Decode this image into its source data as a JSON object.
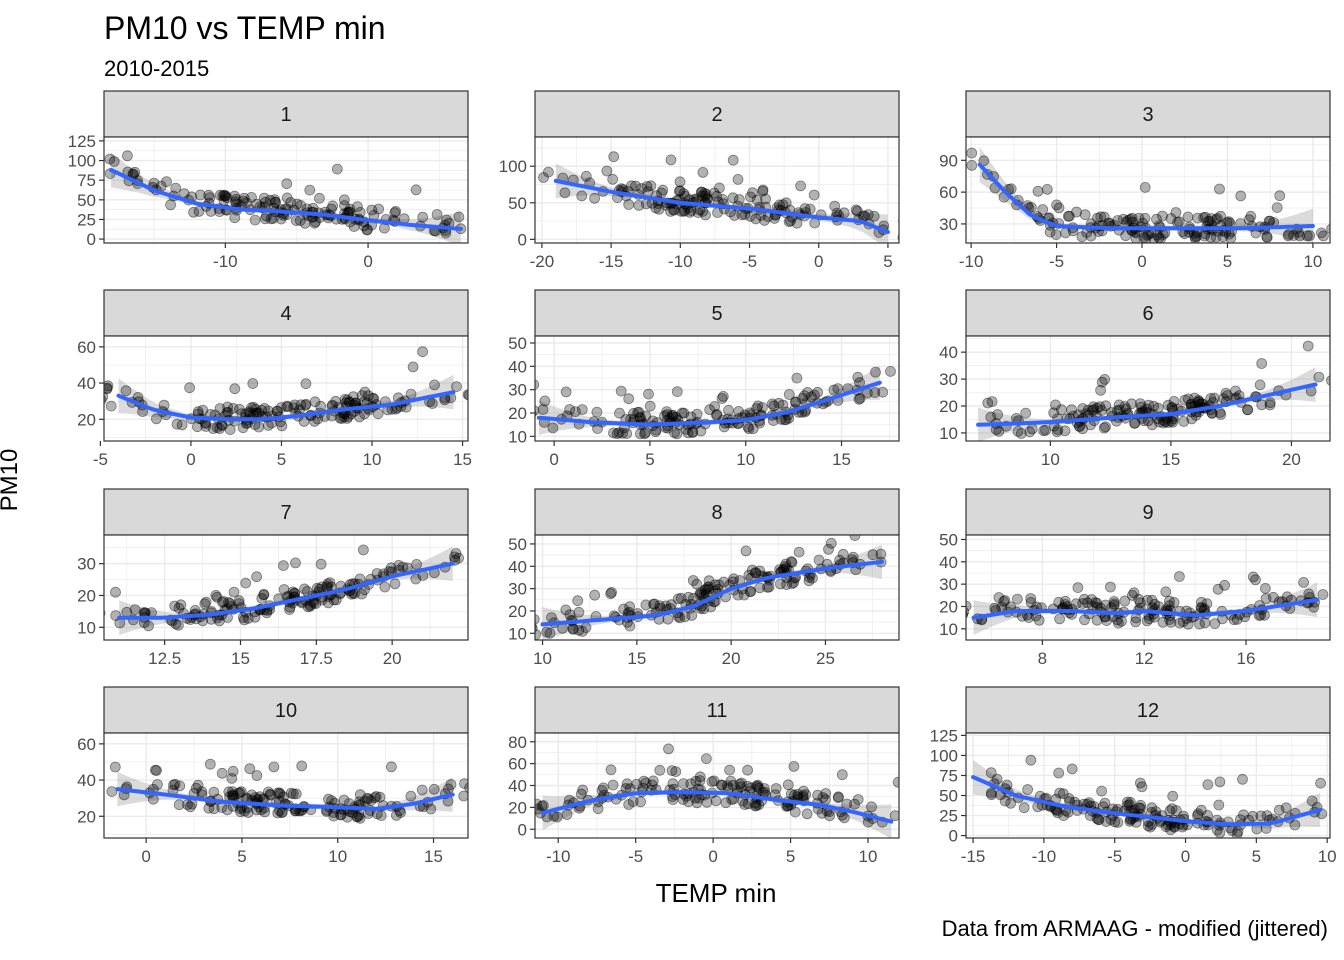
{
  "title": "PM10 vs TEMP min",
  "subtitle": "2010-2015",
  "xlabel": "TEMP min",
  "ylabel": "PM10",
  "caption": "Data from ARMAAG - modified (jittered)",
  "colors": {
    "points": "#000000",
    "smooth": "#3366FF",
    "ribbon": "#999999",
    "strip_fill": "#D9D9D9",
    "panel_border": "#333333",
    "grid": "#EBEBEB"
  },
  "chart_data": {
    "type": "scatter",
    "smooth": "loess",
    "facet_by": "month",
    "grid": true,
    "panels": [
      {
        "label": "1",
        "xlim": [
          -18.5,
          7
        ],
        "ylim": [
          -5,
          130
        ],
        "xticks": [
          -10,
          0
        ],
        "yticks": [
          0,
          25,
          50,
          75,
          100,
          125
        ],
        "smooth": [
          [
            -18,
            88
          ],
          [
            -15,
            62
          ],
          [
            -12,
            45
          ],
          [
            -9,
            38
          ],
          [
            -6,
            35
          ],
          [
            -3,
            31
          ],
          [
            0,
            24
          ],
          [
            3,
            18
          ],
          [
            6.5,
            13
          ]
        ]
      },
      {
        "label": "2",
        "xlim": [
          -20.5,
          5.8
        ],
        "ylim": [
          -5,
          140
        ],
        "xticks": [
          -20,
          -15,
          -10,
          -5,
          0,
          5
        ],
        "yticks": [
          0,
          50,
          100
        ],
        "smooth": [
          [
            -19,
            80
          ],
          [
            -15,
            65
          ],
          [
            -10,
            50
          ],
          [
            -5,
            42
          ],
          [
            0,
            30
          ],
          [
            3,
            25
          ],
          [
            5,
            10
          ]
        ]
      },
      {
        "label": "3",
        "xlim": [
          -10.3,
          11
        ],
        "ylim": [
          12,
          112
        ],
        "xticks": [
          -10,
          -5,
          0,
          5,
          10
        ],
        "yticks": [
          30,
          60,
          90
        ],
        "smooth": [
          [
            -9.5,
            86
          ],
          [
            -8,
            60
          ],
          [
            -6.5,
            38
          ],
          [
            -5,
            28
          ],
          [
            -2,
            26
          ],
          [
            0,
            26
          ],
          [
            3,
            26
          ],
          [
            6,
            26
          ],
          [
            10,
            28
          ]
        ]
      },
      {
        "label": "4",
        "xlim": [
          -4.8,
          15.3
        ],
        "ylim": [
          8,
          66
        ],
        "xticks": [
          -5,
          0,
          5,
          10,
          15
        ],
        "yticks": [
          20,
          40,
          60
        ],
        "smooth": [
          [
            -4,
            33
          ],
          [
            -2,
            25
          ],
          [
            0,
            21
          ],
          [
            2,
            20
          ],
          [
            4,
            20
          ],
          [
            6,
            22
          ],
          [
            8,
            25
          ],
          [
            11,
            28
          ],
          [
            14.5,
            35
          ]
        ]
      },
      {
        "label": "5",
        "xlim": [
          -1,
          18
        ],
        "ylim": [
          8,
          53
        ],
        "xticks": [
          0,
          5,
          10,
          15
        ],
        "yticks": [
          10,
          20,
          30,
          40,
          50
        ],
        "smooth": [
          [
            -0.8,
            18
          ],
          [
            2,
            16
          ],
          [
            5,
            15
          ],
          [
            8,
            16
          ],
          [
            10,
            17
          ],
          [
            12,
            20
          ],
          [
            14,
            25
          ],
          [
            17,
            33
          ]
        ]
      },
      {
        "label": "6",
        "xlim": [
          6.5,
          21.6
        ],
        "ylim": [
          7,
          46
        ],
        "xticks": [
          10,
          15,
          20
        ],
        "yticks": [
          10,
          20,
          30,
          40
        ],
        "smooth": [
          [
            7,
            13
          ],
          [
            10,
            14
          ],
          [
            13,
            16
          ],
          [
            15,
            17
          ],
          [
            17,
            20
          ],
          [
            19,
            24
          ],
          [
            21,
            28
          ]
        ]
      },
      {
        "label": "7",
        "xlim": [
          10.5,
          22.5
        ],
        "ylim": [
          6,
          39
        ],
        "xticks": [
          12.5,
          15,
          17.5,
          20
        ],
        "yticks": [
          10,
          20,
          30
        ],
        "smooth": [
          [
            11,
            13
          ],
          [
            12.5,
            13
          ],
          [
            14,
            14
          ],
          [
            15.5,
            16
          ],
          [
            17,
            19
          ],
          [
            18.5,
            22
          ],
          [
            20,
            26
          ],
          [
            22,
            30
          ]
        ]
      },
      {
        "label": "8",
        "xlim": [
          9.6,
          28.9
        ],
        "ylim": [
          7,
          54
        ],
        "xticks": [
          10,
          15,
          20,
          25
        ],
        "yticks": [
          10,
          20,
          30,
          40,
          50
        ],
        "smooth": [
          [
            10,
            14
          ],
          [
            13,
            16
          ],
          [
            16,
            18
          ],
          [
            18,
            22
          ],
          [
            20,
            30
          ],
          [
            22,
            35
          ],
          [
            25,
            39
          ],
          [
            28,
            42
          ]
        ]
      },
      {
        "label": "9",
        "xlim": [
          5,
          19.3
        ],
        "ylim": [
          5,
          52
        ],
        "xticks": [
          8,
          12,
          16
        ],
        "yticks": [
          10,
          20,
          30,
          40,
          50
        ],
        "smooth": [
          [
            5.3,
            15
          ],
          [
            7,
            18
          ],
          [
            9,
            18
          ],
          [
            11,
            17
          ],
          [
            12,
            18
          ],
          [
            14,
            16
          ],
          [
            16,
            18
          ],
          [
            18.8,
            23
          ]
        ]
      },
      {
        "label": "10",
        "xlim": [
          -2.2,
          16.8
        ],
        "ylim": [
          8,
          66
        ],
        "xticks": [
          0,
          5,
          10,
          15
        ],
        "yticks": [
          20,
          40,
          60
        ],
        "smooth": [
          [
            -1.5,
            35
          ],
          [
            1,
            32
          ],
          [
            4,
            28
          ],
          [
            7,
            26
          ],
          [
            10,
            25
          ],
          [
            12,
            24
          ],
          [
            14,
            27
          ],
          [
            16,
            32
          ]
        ]
      },
      {
        "label": "11",
        "xlim": [
          -11.5,
          12
        ],
        "ylim": [
          -8,
          88
        ],
        "xticks": [
          -10,
          -5,
          0,
          5,
          10
        ],
        "yticks": [
          0,
          20,
          40,
          60,
          80
        ],
        "smooth": [
          [
            -11,
            15
          ],
          [
            -8,
            26
          ],
          [
            -5,
            33
          ],
          [
            -2,
            34
          ],
          [
            1,
            33
          ],
          [
            4,
            27
          ],
          [
            7,
            22
          ],
          [
            9,
            16
          ],
          [
            11.5,
            7
          ]
        ]
      },
      {
        "label": "12",
        "xlim": [
          -15.5,
          10.2
        ],
        "ylim": [
          -3,
          128
        ],
        "xticks": [
          -15,
          -10,
          -5,
          0,
          5,
          10
        ],
        "yticks": [
          0,
          25,
          50,
          75,
          100,
          125
        ],
        "smooth": [
          [
            -15,
            73
          ],
          [
            -12,
            50
          ],
          [
            -9,
            38
          ],
          [
            -6,
            30
          ],
          [
            -3,
            24
          ],
          [
            0,
            18
          ],
          [
            3,
            14
          ],
          [
            6,
            15
          ],
          [
            9.5,
            32
          ]
        ]
      }
    ]
  }
}
